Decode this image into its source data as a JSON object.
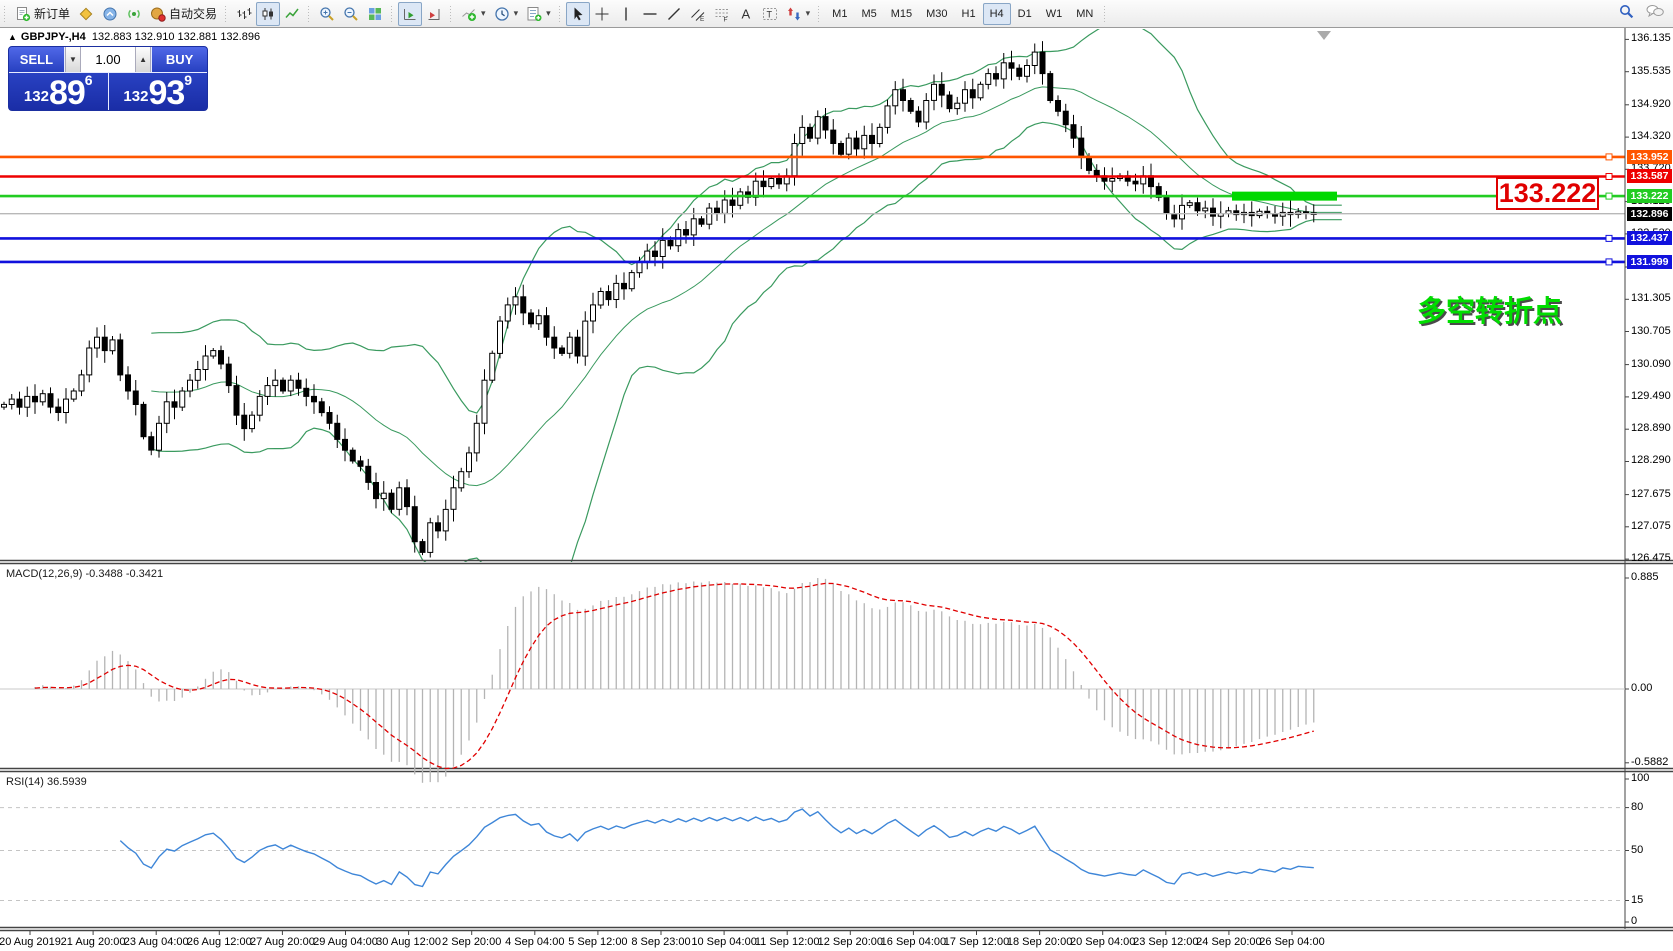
{
  "toolbar": {
    "new_order_label": "新订单",
    "autotrading_label": "自动交易",
    "timeframes": [
      "M1",
      "M5",
      "M15",
      "M30",
      "H1",
      "H4",
      "D1",
      "W1",
      "MN"
    ],
    "active_timeframe": "H4"
  },
  "symbol_bar": {
    "collapse_icon": "▲",
    "symbol": "GBPJPY-,H4",
    "ohlc": "132.883 132.910 132.881 132.896"
  },
  "trade_panel": {
    "sell_label": "SELL",
    "buy_label": "BUY",
    "volume": "1.00",
    "spin_down": "▼",
    "spin_up": "▲",
    "sell_small": "132",
    "sell_big": "89",
    "sell_sup": "6",
    "buy_small": "132",
    "buy_big": "93",
    "buy_sup": "9"
  },
  "chart_data": {
    "type": "candlestick",
    "symbol": "GBPJPY-",
    "timeframe": "H4",
    "closes": [
      129.35,
      129.45,
      129.3,
      129.5,
      129.4,
      129.55,
      129.3,
      129.2,
      129.45,
      129.6,
      129.9,
      130.4,
      130.6,
      130.35,
      130.55,
      129.9,
      129.6,
      129.35,
      128.75,
      128.5,
      129.0,
      129.4,
      129.3,
      129.6,
      129.8,
      130.0,
      130.25,
      130.35,
      130.1,
      129.7,
      129.15,
      128.9,
      129.15,
      129.5,
      129.7,
      129.8,
      129.6,
      129.8,
      129.65,
      129.5,
      129.4,
      129.2,
      129.0,
      128.7,
      128.5,
      128.3,
      128.2,
      127.9,
      127.6,
      127.7,
      127.4,
      127.8,
      127.45,
      126.8,
      126.6,
      127.15,
      127.0,
      127.4,
      127.8,
      128.1,
      128.45,
      129.0,
      129.8,
      130.3,
      130.9,
      131.2,
      131.35,
      131.05,
      130.85,
      131.0,
      130.6,
      130.4,
      130.3,
      130.6,
      130.25,
      130.9,
      131.2,
      131.45,
      131.3,
      131.6,
      131.5,
      131.8,
      132.0,
      132.2,
      132.1,
      132.4,
      132.3,
      132.6,
      132.5,
      132.8,
      132.7,
      133.0,
      132.9,
      133.15,
      133.05,
      133.3,
      133.2,
      133.5,
      133.4,
      133.55,
      133.45,
      133.6,
      134.2,
      134.5,
      134.3,
      134.7,
      134.45,
      134.2,
      134.0,
      134.3,
      134.1,
      134.35,
      134.2,
      134.5,
      134.9,
      135.2,
      135.0,
      134.8,
      134.6,
      135.0,
      135.3,
      135.1,
      134.85,
      134.95,
      135.2,
      135.05,
      135.3,
      135.5,
      135.4,
      135.7,
      135.6,
      135.45,
      135.65,
      135.9,
      135.5,
      135.0,
      134.8,
      134.55,
      134.3,
      133.95,
      133.7,
      133.6,
      133.5,
      133.55,
      133.6,
      133.5,
      133.45,
      133.6,
      133.4,
      133.2,
      132.9,
      132.8,
      133.05,
      133.1,
      132.95,
      133.0,
      132.85,
      132.9,
      132.95,
      132.88,
      132.92,
      132.86,
      132.94,
      132.9,
      132.85,
      132.92,
      132.88,
      132.93,
      132.91,
      132.896
    ],
    "bollinger": {
      "period": 20,
      "deviation": 2
    },
    "price_axis": {
      "ticks": [
        "136.135",
        "135.535",
        "134.920",
        "134.320",
        "133.720",
        "133.120",
        "132.520",
        "131.905",
        "131.305",
        "130.705",
        "130.090",
        "129.490",
        "128.890",
        "128.290",
        "127.675",
        "127.075",
        "126.475"
      ]
    },
    "time_axis": {
      "labels": [
        "20 Aug 2019",
        "21 Aug 20:00",
        "23 Aug 04:00",
        "26 Aug 12:00",
        "27 Aug 20:00",
        "29 Aug 04:00",
        "30 Aug 12:00",
        "2 Sep 20:00",
        "4 Sep 04:00",
        "5 Sep 12:00",
        "8 Sep 23:00",
        "10 Sep 04:00",
        "11 Sep 12:00",
        "12 Sep 20:00",
        "16 Sep 04:00",
        "17 Sep 12:00",
        "18 Sep 20:00",
        "20 Sep 04:00",
        "23 Sep 12:00",
        "24 Sep 20:00",
        "26 Sep 04:00"
      ]
    },
    "levels": [
      {
        "price": "133.952",
        "value": 133.952,
        "color": "#ff5500"
      },
      {
        "price": "133.587",
        "value": 133.587,
        "color": "#ee0000"
      },
      {
        "price": "133.222",
        "value": 133.222,
        "color": "#22cc22"
      },
      {
        "price": "132.437",
        "value": 132.437,
        "color": "#1111dd"
      },
      {
        "price": "131.999",
        "value": 131.999,
        "color": "#1111dd"
      }
    ],
    "current_price": {
      "price": "132.896",
      "value": 132.896,
      "badge_color": "#000000"
    },
    "highlight_zone": {
      "value": 133.222,
      "color": "#00d800"
    },
    "macd": {
      "label": "MACD(12,26,9)",
      "values": "-0.3488 -0.3421",
      "axis": [
        {
          "label": "0.885",
          "value": 0.885
        },
        {
          "label": "0.00",
          "value": 0
        },
        {
          "label": "-0.5882",
          "value": -0.5882
        }
      ]
    },
    "rsi": {
      "label": "RSI(14) 36.5939",
      "levels": [
        80,
        50,
        15
      ],
      "axis": [
        {
          "label": "100",
          "value": 100
        },
        {
          "label": "80",
          "value": 80
        },
        {
          "label": "50",
          "value": 50
        },
        {
          "label": "15",
          "value": 15
        },
        {
          "label": "0",
          "value": 0
        }
      ]
    },
    "annotations": {
      "callout": "133.222",
      "note": "多空转折点"
    }
  }
}
